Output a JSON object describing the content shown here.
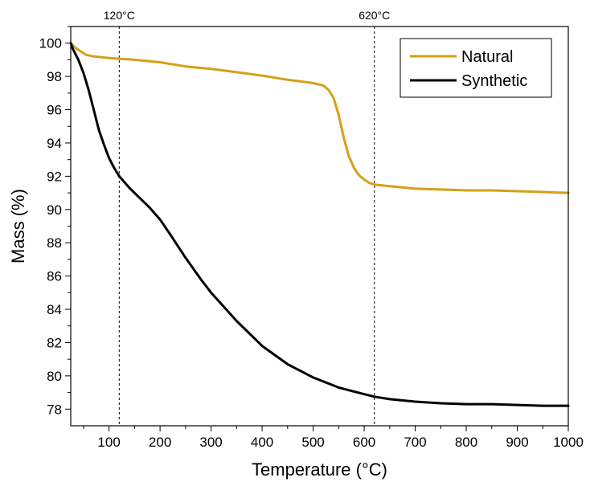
{
  "chart_data": {
    "type": "line",
    "title": "",
    "xlabel": "Temperature (°C)",
    "ylabel": "Mass (%)",
    "xlim": [
      25,
      1000
    ],
    "ylim": [
      77,
      101
    ],
    "xticks": [
      100,
      200,
      300,
      400,
      500,
      600,
      700,
      800,
      900,
      1000
    ],
    "xtick_labels": [
      "100",
      "200",
      "300",
      "400",
      "500",
      "600",
      "700",
      "800",
      "900",
      "1000"
    ],
    "yticks": [
      78,
      80,
      82,
      84,
      86,
      88,
      90,
      92,
      94,
      96,
      98,
      100
    ],
    "ytick_labels": [
      "78",
      "80",
      "82",
      "84",
      "86",
      "88",
      "90",
      "92",
      "94",
      "96",
      "98",
      "100"
    ],
    "grid": false,
    "legend_position": "top-right",
    "annotations": [
      {
        "label": "120°C",
        "x": 120
      },
      {
        "label": "620°C",
        "x": 620
      }
    ],
    "series": [
      {
        "name": "Natural",
        "color": "#d4a017",
        "x": [
          25,
          35,
          45,
          55,
          70,
          100,
          150,
          200,
          250,
          300,
          350,
          400,
          450,
          500,
          520,
          530,
          540,
          550,
          560,
          570,
          580,
          590,
          600,
          610,
          620,
          650,
          700,
          750,
          800,
          850,
          900,
          950,
          1000
        ],
        "y": [
          100.0,
          99.7,
          99.5,
          99.3,
          99.2,
          99.1,
          99.0,
          98.85,
          98.6,
          98.45,
          98.25,
          98.05,
          97.8,
          97.6,
          97.45,
          97.2,
          96.7,
          95.7,
          94.3,
          93.2,
          92.5,
          92.05,
          91.8,
          91.6,
          91.5,
          91.4,
          91.25,
          91.2,
          91.15,
          91.15,
          91.1,
          91.05,
          91.0
        ]
      },
      {
        "name": "Synthetic",
        "color": "#000000",
        "x": [
          25,
          30,
          40,
          50,
          60,
          70,
          80,
          90,
          100,
          110,
          120,
          140,
          160,
          180,
          200,
          220,
          250,
          280,
          300,
          350,
          400,
          450,
          500,
          550,
          600,
          620,
          650,
          700,
          750,
          800,
          850,
          900,
          950,
          1000
        ],
        "y": [
          100.0,
          99.6,
          99.0,
          98.2,
          97.2,
          96.0,
          94.8,
          93.9,
          93.1,
          92.5,
          92.0,
          91.3,
          90.7,
          90.1,
          89.4,
          88.5,
          87.1,
          85.8,
          85.0,
          83.3,
          81.8,
          80.7,
          79.9,
          79.3,
          78.9,
          78.75,
          78.6,
          78.45,
          78.35,
          78.3,
          78.3,
          78.25,
          78.2,
          78.2
        ]
      }
    ]
  }
}
